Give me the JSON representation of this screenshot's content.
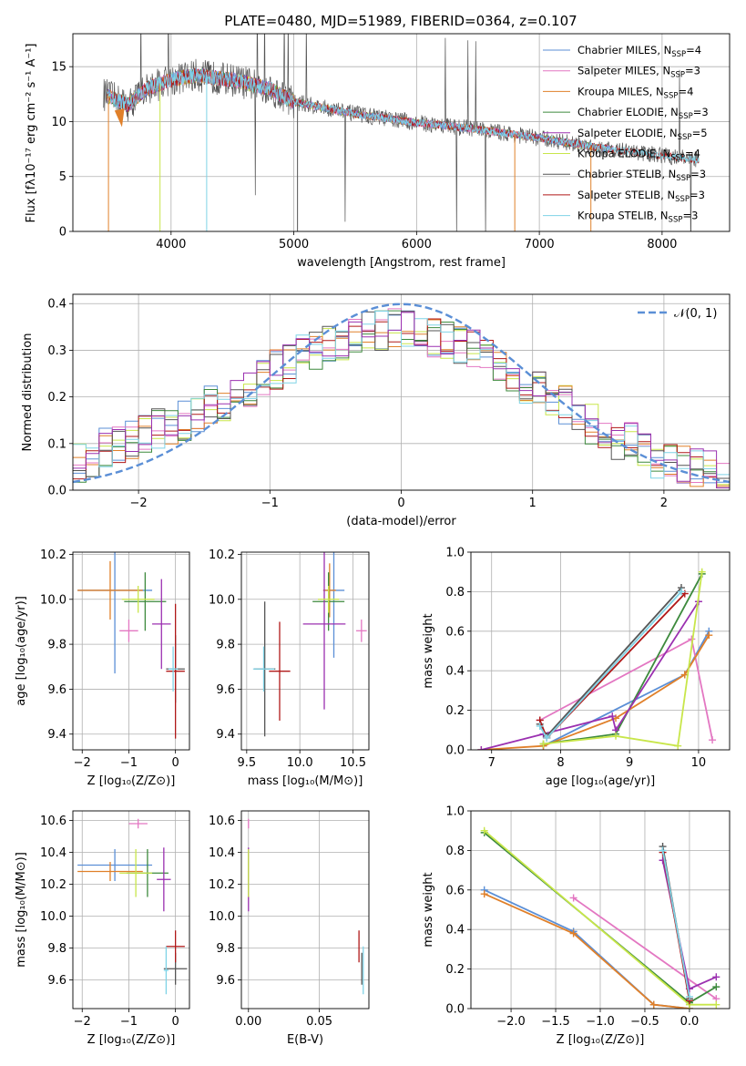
{
  "colors": {
    "Chabrier MILES": "#5b8fd6",
    "Salpeter MILES": "#e377c2",
    "Kroupa MILES": "#e0802a",
    "Chabrier ELODIE": "#3d8a3d",
    "Salpeter ELODIE": "#9b30b0",
    "Kroupa ELODIE": "#c8e64a",
    "Chabrier STELIB": "#555555",
    "Salpeter STELIB": "#b01818",
    "Kroupa STELIB": "#7fd3e6",
    "gauss": "#5b8fd6"
  },
  "chart_data": [
    {
      "id": "spectrum",
      "type": "line",
      "title": "PLATE=0480, MJD=51989, FIBERID=0364, z=0.107",
      "xlabel": "wavelength [Angstrom, rest frame]",
      "ylabel": "Flux [fλ10⁻¹⁷ erg cm⁻² s⁻¹ A⁻¹]",
      "xlim": [
        3200,
        8550
      ],
      "ylim": [
        0,
        18
      ],
      "xticks": [
        "4000",
        "5000",
        "6000",
        "7000",
        "8000"
      ],
      "yticks": [
        "0",
        "5",
        "10",
        "15"
      ],
      "legend_position": "top-right",
      "legend": [
        {
          "label": "Chabrier MILES, N",
          "sub": "SSP",
          "suffix": "=4"
        },
        {
          "label": "Salpeter MILES, N",
          "sub": "SSP",
          "suffix": "=3"
        },
        {
          "label": "Kroupa MILES, N",
          "sub": "SSP",
          "suffix": "=4"
        },
        {
          "label": "Chabrier ELODIE, N",
          "sub": "SSP",
          "suffix": "=3"
        },
        {
          "label": "Salpeter ELODIE, N",
          "sub": "SSP",
          "suffix": "=5"
        },
        {
          "label": "Kroupa ELODIE, N",
          "sub": "SSP",
          "suffix": "=4"
        },
        {
          "label": "Chabrier STELIB, N",
          "sub": "SSP",
          "suffix": "=3"
        },
        {
          "label": "Salpeter STELIB, N",
          "sub": "SSP",
          "suffix": "=3"
        },
        {
          "label": "Kroupa STELIB, N",
          "sub": "SSP",
          "suffix": "=3"
        }
      ],
      "continuum": {
        "x": [
          3450,
          3650,
          3800,
          4000,
          4200,
          4500,
          4800,
          5000,
          5500,
          6000,
          6500,
          7000,
          7500,
          8000,
          8300
        ],
        "y": [
          12.5,
          11.5,
          13.0,
          13.8,
          14.2,
          13.8,
          13.0,
          11.8,
          10.7,
          9.9,
          9.3,
          8.5,
          7.6,
          6.9,
          6.5
        ]
      }
    },
    {
      "id": "residuals",
      "type": "line",
      "xlabel": "(data-model)/error",
      "ylabel": "Normed distribution",
      "xlim": [
        -2.5,
        2.5
      ],
      "ylim": [
        0,
        0.42
      ],
      "xticks": [
        "−2",
        "−1",
        "0",
        "1",
        "2"
      ],
      "yticks": [
        "0.0",
        "0.1",
        "0.2",
        "0.3",
        "0.4"
      ],
      "legend_position": "top-right",
      "gauss_label": "𝒩(0, 1)",
      "bin_width": 0.1,
      "bin_start": -2.5,
      "hist_reference": [
        0.06,
        0.07,
        0.09,
        0.1,
        0.11,
        0.12,
        0.13,
        0.14,
        0.15,
        0.17,
        0.18,
        0.19,
        0.21,
        0.22,
        0.24,
        0.26,
        0.27,
        0.29,
        0.3,
        0.31,
        0.32,
        0.33,
        0.34,
        0.34,
        0.35,
        0.35,
        0.34,
        0.33,
        0.32,
        0.31,
        0.3,
        0.28,
        0.27,
        0.25,
        0.23,
        0.21,
        0.19,
        0.18,
        0.16,
        0.14,
        0.12,
        0.11,
        0.1,
        0.08,
        0.07,
        0.06,
        0.05,
        0.05,
        0.04,
        0.03
      ]
    },
    {
      "id": "age-vs-Z",
      "type": "scatter",
      "xlabel": "Z [log₁₀(Z/Z⊙)]",
      "ylabel": "age  [log₁₀(age/yr)]",
      "xlim": [
        -2.2,
        0.3
      ],
      "ylim": [
        9.33,
        10.21
      ],
      "xticks": [
        "−2",
        "−1",
        "0"
      ],
      "yticks": [
        "9.4",
        "9.6",
        "9.8",
        "10.0",
        "10.2"
      ],
      "points": [
        {
          "series": "Chabrier MILES",
          "x": -1.3,
          "xerr": 0.8,
          "y": 10.04,
          "yerr": 0.37
        },
        {
          "series": "Salpeter MILES",
          "x": -1.0,
          "xerr": 0.2,
          "y": 9.86,
          "yerr": 0.05
        },
        {
          "series": "Kroupa MILES",
          "x": -1.4,
          "xerr": 0.7,
          "y": 10.04,
          "yerr": 0.13
        },
        {
          "series": "Chabrier ELODIE",
          "x": -0.65,
          "xerr": 0.45,
          "y": 9.99,
          "yerr": 0.13
        },
        {
          "series": "Salpeter ELODIE",
          "x": -0.3,
          "xerr": 0.2,
          "y": 9.89,
          "yerr": 0.2
        },
        {
          "series": "Kroupa ELODIE",
          "x": -0.8,
          "xerr": 0.35,
          "y": 10.0,
          "yerr": 0.06
        },
        {
          "series": "Chabrier STELIB",
          "x": 0.0,
          "xerr": 0.2,
          "y": 9.69,
          "yerr": 0.15
        },
        {
          "series": "Salpeter STELIB",
          "x": 0.0,
          "xerr": 0.2,
          "y": 9.68,
          "yerr": 0.3
        },
        {
          "series": "Kroupa STELIB",
          "x": -0.05,
          "xerr": 0.1,
          "y": 9.69,
          "yerr": 0.1
        }
      ]
    },
    {
      "id": "age-vs-mass",
      "type": "scatter",
      "xlabel": "mass [log₁₀(M/M⊙)]",
      "xlim": [
        9.45,
        10.65
      ],
      "ylim": [
        9.33,
        10.21
      ],
      "xticks": [
        "9.5",
        "10.0",
        "10.5"
      ],
      "yticks": [
        "9.4",
        "9.6",
        "9.8",
        "10.0",
        "10.2"
      ],
      "points": [
        {
          "series": "Chabrier MILES",
          "x": 10.32,
          "xerr": 0.1,
          "y": 10.04,
          "yerr": 0.3
        },
        {
          "series": "Salpeter MILES",
          "x": 10.58,
          "xerr": 0.05,
          "y": 9.86,
          "yerr": 0.05
        },
        {
          "series": "Kroupa MILES",
          "x": 10.28,
          "xerr": 0.06,
          "y": 10.04,
          "yerr": 0.12
        },
        {
          "series": "Chabrier ELODIE",
          "x": 10.27,
          "xerr": 0.15,
          "y": 9.99,
          "yerr": 0.13
        },
        {
          "series": "Salpeter ELODIE",
          "x": 10.23,
          "xerr": 0.2,
          "y": 9.89,
          "yerr": 0.38
        },
        {
          "series": "Kroupa ELODIE",
          "x": 10.27,
          "xerr": 0.1,
          "y": 10.0,
          "yerr": 0.06
        },
        {
          "series": "Chabrier STELIB",
          "x": 9.67,
          "xerr": 0.1,
          "y": 9.69,
          "yerr": 0.3
        },
        {
          "series": "Salpeter STELIB",
          "x": 9.81,
          "xerr": 0.1,
          "y": 9.68,
          "yerr": 0.22
        },
        {
          "series": "Kroupa STELIB",
          "x": 9.66,
          "xerr": 0.1,
          "y": 9.69,
          "yerr": 0.1
        }
      ]
    },
    {
      "id": "weight-vs-age",
      "type": "line",
      "xlabel": "age  [log₁₀(age/yr)]",
      "ylabel": "mass weight",
      "xlim": [
        6.7,
        10.45
      ],
      "ylim": [
        0,
        1.0
      ],
      "xticks": [
        "7",
        "8",
        "9",
        "10"
      ],
      "yticks": [
        "0.0",
        "0.2",
        "0.4",
        "0.6",
        "0.8",
        "1.0"
      ],
      "series": [
        {
          "name": "Chabrier MILES",
          "x": [
            7.75,
            9.8,
            10.15
          ],
          "y": [
            0.02,
            0.38,
            0.6
          ]
        },
        {
          "name": "Salpeter MILES",
          "x": [
            7.7,
            9.9,
            10.2
          ],
          "y": [
            0.15,
            0.56,
            0.05
          ]
        },
        {
          "name": "Kroupa MILES",
          "x": [
            6.85,
            7.75,
            8.8,
            9.8,
            10.15
          ],
          "y": [
            0.0,
            0.02,
            0.16,
            0.38,
            0.58
          ]
        },
        {
          "name": "Chabrier ELODIE",
          "x": [
            7.75,
            8.8,
            10.05
          ],
          "y": [
            0.03,
            0.08,
            0.89
          ]
        },
        {
          "name": "Salpeter ELODIE",
          "x": [
            6.85,
            7.75,
            8.75,
            8.8,
            10.0
          ],
          "y": [
            0.0,
            0.08,
            0.17,
            0.1,
            0.75
          ]
        },
        {
          "name": "Kroupa ELODIE",
          "x": [
            7.75,
            8.8,
            9.7,
            10.05
          ],
          "y": [
            0.03,
            0.07,
            0.02,
            0.9
          ]
        },
        {
          "name": "Chabrier STELIB",
          "x": [
            7.7,
            7.8,
            9.75
          ],
          "y": [
            0.13,
            0.07,
            0.82
          ]
        },
        {
          "name": "Salpeter STELIB",
          "x": [
            7.7,
            7.8,
            9.8
          ],
          "y": [
            0.15,
            0.06,
            0.79
          ]
        },
        {
          "name": "Kroupa STELIB",
          "x": [
            7.7,
            7.8,
            9.75
          ],
          "y": [
            0.12,
            0.06,
            0.8
          ]
        }
      ]
    },
    {
      "id": "mass-vs-Z",
      "type": "scatter",
      "xlabel": "Z [log₁₀(Z/Z⊙)]",
      "ylabel": "mass [log₁₀(M/M⊙)]",
      "xlim": [
        -2.2,
        0.3
      ],
      "ylim": [
        9.42,
        10.66
      ],
      "xticks": [
        "−2",
        "−1",
        "0"
      ],
      "yticks": [
        "9.6",
        "9.8",
        "10.0",
        "10.2",
        "10.4",
        "10.6"
      ],
      "points": [
        {
          "series": "Chabrier MILES",
          "x": -1.3,
          "xerr": 0.8,
          "y": 10.32,
          "yerr": 0.1
        },
        {
          "series": "Salpeter MILES",
          "x": -0.8,
          "xerr": 0.2,
          "y": 10.58,
          "yerr": 0.03
        },
        {
          "series": "Kroupa MILES",
          "x": -1.4,
          "xerr": 0.7,
          "y": 10.28,
          "yerr": 0.06
        },
        {
          "series": "Chabrier ELODIE",
          "x": -0.6,
          "xerr": 0.45,
          "y": 10.27,
          "yerr": 0.15
        },
        {
          "series": "Salpeter ELODIE",
          "x": -0.25,
          "xerr": 0.15,
          "y": 10.23,
          "yerr": 0.2
        },
        {
          "series": "Kroupa ELODIE",
          "x": -0.85,
          "xerr": 0.35,
          "y": 10.27,
          "yerr": 0.15
        },
        {
          "series": "Chabrier STELIB",
          "x": 0.0,
          "xerr": 0.25,
          "y": 9.67,
          "yerr": 0.1
        },
        {
          "series": "Salpeter STELIB",
          "x": 0.0,
          "xerr": 0.2,
          "y": 9.81,
          "yerr": 0.1
        },
        {
          "series": "Kroupa STELIB",
          "x": -0.2,
          "xerr": 0.05,
          "y": 9.66,
          "yerr": 0.15
        }
      ]
    },
    {
      "id": "mass-vs-ebv",
      "type": "scatter",
      "xlabel": "E(B-V)",
      "xlim": [
        -0.005,
        0.085
      ],
      "ylim": [
        9.42,
        10.66
      ],
      "xticks": [
        "0.00",
        "0.05"
      ],
      "yticks": [
        "9.6",
        "9.8",
        "10.0",
        "10.2",
        "10.4",
        "10.6"
      ],
      "points": [
        {
          "series": "Chabrier MILES",
          "x": 0.0,
          "xerr": 0,
          "y": 10.32,
          "yerr": 0.1
        },
        {
          "series": "Salpeter MILES",
          "x": 0.0,
          "xerr": 0,
          "y": 10.58,
          "yerr": 0.03
        },
        {
          "series": "Kroupa MILES",
          "x": 0.0,
          "xerr": 0,
          "y": 10.28,
          "yerr": 0.06
        },
        {
          "series": "Chabrier ELODIE",
          "x": 0.0,
          "xerr": 0,
          "y": 10.27,
          "yerr": 0.15
        },
        {
          "series": "Salpeter ELODIE",
          "x": 0.0,
          "xerr": 0,
          "y": 10.23,
          "yerr": 0.2
        },
        {
          "series": "Kroupa ELODIE",
          "x": 0.0,
          "xerr": 0,
          "y": 10.27,
          "yerr": 0.15
        },
        {
          "series": "Chabrier STELIB",
          "x": 0.08,
          "xerr": 0,
          "y": 9.67,
          "yerr": 0.1
        },
        {
          "series": "Salpeter STELIB",
          "x": 0.078,
          "xerr": 0,
          "y": 9.81,
          "yerr": 0.1
        },
        {
          "series": "Kroupa STELIB",
          "x": 0.081,
          "xerr": 0,
          "y": 9.66,
          "yerr": 0.15
        }
      ]
    },
    {
      "id": "weight-vs-Z",
      "type": "line",
      "xlabel": "Z [log₁₀(Z/Z⊙)]",
      "ylabel": "mass weight",
      "xlim": [
        -2.45,
        0.45
      ],
      "ylim": [
        0,
        1.0
      ],
      "xticks": [
        "−2.0",
        "−1.5",
        "−1.0",
        "−0.5",
        "0.0"
      ],
      "yticks": [
        "0.0",
        "0.2",
        "0.4",
        "0.6",
        "0.8",
        "1.0"
      ],
      "series": [
        {
          "name": "Chabrier MILES",
          "x": [
            -2.3,
            -1.3,
            -0.4,
            0.0
          ],
          "y": [
            0.6,
            0.39,
            0.02,
            0.0
          ]
        },
        {
          "name": "Salpeter MILES",
          "x": [
            -1.3,
            0.3
          ],
          "y": [
            0.56,
            0.05
          ]
        },
        {
          "name": "Kroupa MILES",
          "x": [
            -2.3,
            -1.3,
            -0.4,
            0.0
          ],
          "y": [
            0.58,
            0.38,
            0.02,
            0.0
          ]
        },
        {
          "name": "Chabrier ELODIE",
          "x": [
            -2.3,
            0.0,
            0.3
          ],
          "y": [
            0.89,
            0.03,
            0.11
          ]
        },
        {
          "name": "Salpeter ELODIE",
          "x": [
            -0.3,
            0.0,
            0.3
          ],
          "y": [
            0.75,
            0.1,
            0.16
          ]
        },
        {
          "name": "Kroupa ELODIE",
          "x": [
            -2.3,
            0.0,
            0.3
          ],
          "y": [
            0.9,
            0.02,
            0.02
          ]
        },
        {
          "name": "Chabrier STELIB",
          "x": [
            -0.3,
            0.0
          ],
          "y": [
            0.82,
            0.05
          ]
        },
        {
          "name": "Salpeter STELIB",
          "x": [
            -0.3,
            0.0
          ],
          "y": [
            0.79,
            0.04
          ]
        },
        {
          "name": "Kroupa STELIB",
          "x": [
            -0.3,
            0.0
          ],
          "y": [
            0.8,
            0.06
          ]
        }
      ]
    }
  ]
}
